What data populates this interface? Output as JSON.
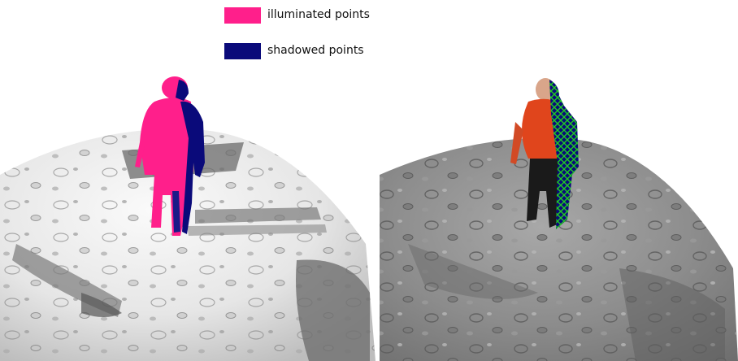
{
  "legend": {
    "items": [
      {
        "label": "illuminated points",
        "color": "#ff1f8b"
      },
      {
        "label": "shadowed points",
        "color": "#0a0a7a"
      }
    ]
  },
  "colors": {
    "illuminated": "#ff1f8b",
    "shadowed": "#0a0a7a",
    "wireframe": "#22cc22",
    "shirt": "#e0451c",
    "terrain_light": "#f2f2f2",
    "terrain_dark": "#6a6a6a"
  },
  "scenes": [
    {
      "name": "shading-classification-view"
    },
    {
      "name": "textured-render-view"
    }
  ]
}
